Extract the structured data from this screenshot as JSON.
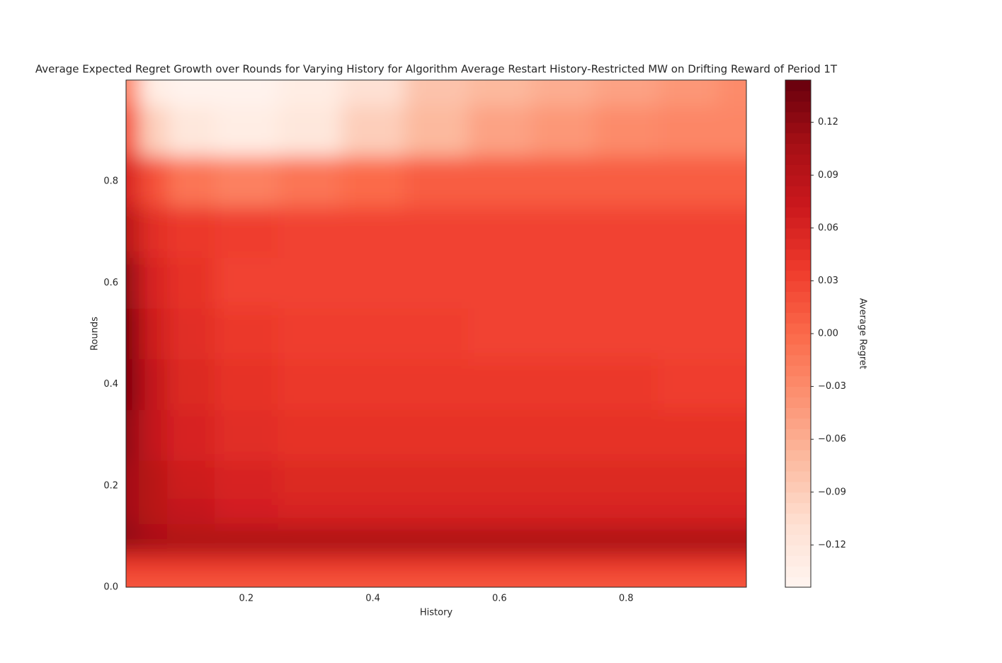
{
  "chart_data": {
    "type": "contour",
    "title": "Average Expected Regret Growth over Rounds for Varying History for Algorithm Average Restart History-Restricted MW on Drifting Reward of Period 1T",
    "x_label": "History",
    "y_label": "Rounds",
    "colorbar_label": "Average Regret",
    "colormap": "Reds",
    "x": [
      0.01,
      0.05,
      0.1,
      0.2,
      0.3,
      0.4,
      0.5,
      0.6,
      0.7,
      0.8,
      0.9,
      0.99
    ],
    "y": [
      0,
      0.05,
      0.08,
      0.1,
      0.15,
      0.2,
      0.3,
      0.4,
      0.5,
      0.6,
      0.7,
      0.8,
      0.9,
      1.0
    ],
    "z": [
      [
        0.015,
        0.015,
        0.015,
        0.015,
        0.015,
        0.015,
        0.015,
        0.015,
        0.015,
        0.015,
        0.015,
        0.015
      ],
      [
        0.04,
        0.04,
        0.04,
        0.04,
        0.04,
        0.04,
        0.04,
        0.04,
        0.04,
        0.04,
        0.04,
        0.04
      ],
      [
        0.11,
        0.11,
        0.11,
        0.11,
        0.11,
        0.11,
        0.11,
        0.11,
        0.11,
        0.11,
        0.11,
        0.11
      ],
      [
        0.12,
        0.1,
        0.09,
        0.09,
        0.09,
        0.09,
        0.09,
        0.09,
        0.09,
        0.09,
        0.09,
        0.09
      ],
      [
        0.11,
        0.09,
        0.08,
        0.065,
        0.06,
        0.06,
        0.06,
        0.06,
        0.06,
        0.06,
        0.06,
        0.06
      ],
      [
        0.11,
        0.09,
        0.07,
        0.06,
        0.055,
        0.055,
        0.055,
        0.055,
        0.055,
        0.055,
        0.055,
        0.055
      ],
      [
        0.12,
        0.08,
        0.06,
        0.05,
        0.045,
        0.045,
        0.045,
        0.045,
        0.045,
        0.045,
        0.045,
        0.045
      ],
      [
        0.13,
        0.08,
        0.055,
        0.045,
        0.04,
        0.04,
        0.04,
        0.04,
        0.04,
        0.04,
        0.035,
        0.035
      ],
      [
        0.13,
        0.07,
        0.05,
        0.04,
        0.035,
        0.035,
        0.035,
        0.03,
        0.03,
        0.03,
        0.03,
        0.03
      ],
      [
        0.12,
        0.06,
        0.045,
        0.03,
        0.03,
        0.03,
        0.03,
        0.03,
        0.03,
        0.03,
        0.03,
        0.03
      ],
      [
        0.09,
        0.05,
        0.04,
        0.035,
        0.03,
        0.03,
        0.03,
        0.03,
        0.03,
        0.03,
        0.03,
        0.03
      ],
      [
        0.06,
        0.02,
        -0.01,
        -0.02,
        -0.01,
        0.0,
        0.01,
        0.01,
        0.01,
        0.01,
        0.01,
        0.01
      ],
      [
        0.02,
        -0.09,
        -0.12,
        -0.13,
        -0.12,
        -0.09,
        -0.07,
        -0.05,
        -0.04,
        -0.03,
        -0.025,
        -0.025
      ],
      [
        -0.02,
        -0.13,
        -0.14,
        -0.14,
        -0.13,
        -0.11,
        -0.08,
        -0.07,
        -0.06,
        -0.05,
        -0.04,
        -0.03
      ]
    ],
    "xlim": [
      0.01,
      0.99
    ],
    "xticks": [
      0.2,
      0.4,
      0.6,
      0.8
    ],
    "ylim": [
      0,
      1.0
    ],
    "yticks": [
      {
        "value": 0,
        "label": "0.0"
      },
      0.2,
      0.4,
      0.6,
      0.8
    ],
    "clim": [
      -0.144,
      0.144
    ],
    "cticks": [
      {
        "value": -0.12,
        "label": "−0.12"
      },
      {
        "value": -0.09,
        "label": "−0.09"
      },
      {
        "value": -0.06,
        "label": "−0.06"
      },
      {
        "value": -0.03,
        "label": "−0.03"
      },
      {
        "value": 0,
        "label": "0.00"
      },
      0.03,
      0.06,
      0.09,
      0.12
    ]
  }
}
